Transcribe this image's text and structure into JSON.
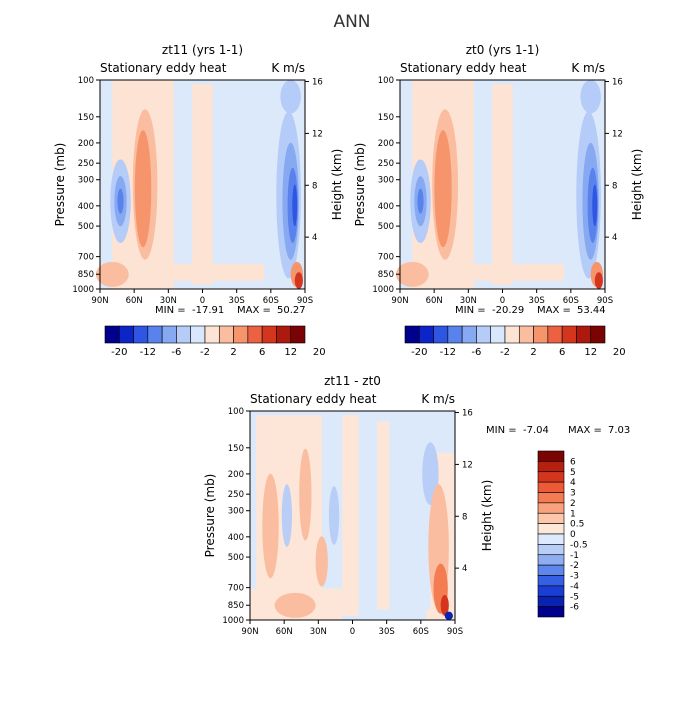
{
  "figure": {
    "title": "ANN"
  },
  "panels": {
    "p1": {
      "title": "zt11 (yrs 1-1)",
      "variable": "Stationary eddy heat",
      "units": "K m/s",
      "ylabel": "Pressure (mb)",
      "ylabel_right": "Height (km)",
      "min_label": "MIN =",
      "min_value": "-17.91",
      "max_label": "MAX =",
      "max_value": "50.27"
    },
    "p2": {
      "title": "zt0 (yrs 1-1)",
      "variable": "Stationary eddy heat",
      "units": "K m/s",
      "ylabel": "Pressure (mb)",
      "ylabel_right": "Height (km)",
      "min_label": "MIN =",
      "min_value": "-20.29",
      "max_label": "MAX =",
      "max_value": "53.44"
    },
    "p3": {
      "title": "zt11 - zt0",
      "variable": "Stationary eddy heat",
      "units": "K m/s",
      "ylabel": "Pressure (mb)",
      "ylabel_right": "Height (km)",
      "min_label": "MIN =",
      "min_value": "-7.04",
      "max_label": "MAX =",
      "max_value": "7.03"
    }
  },
  "chart_data": [
    {
      "type": "heatmap",
      "panel": "p1",
      "title": "zt11 (yrs 1-1)",
      "subtitle": "Stationary eddy heat",
      "units": "K m/s",
      "xlabel": "",
      "ylabel": "Pressure (mb)",
      "ylabel_right": "Height (km)",
      "x_ticks": [
        "90N",
        "60N",
        "30N",
        "0",
        "30S",
        "60S",
        "90S"
      ],
      "y_ticks": [
        "100",
        "150",
        "200",
        "250",
        "300",
        "400",
        "500",
        "700",
        "850",
        "1000"
      ],
      "y_right_ticks": [
        "4",
        "8",
        "12",
        "16"
      ],
      "y_scale": "log",
      "min": -17.91,
      "max": 50.27,
      "colorbar_labels": [
        "-20",
        "-12",
        "-6",
        "-2",
        "2",
        "6",
        "12",
        "20"
      ],
      "colorbar_colors": [
        "#00008c",
        "#0c24c8",
        "#2f55e3",
        "#5a82ec",
        "#87a9f1",
        "#b4ccf7",
        "#d8e7fd",
        "#fde3d3",
        "#fbbd9f",
        "#f6956c",
        "#ec6142",
        "#d3361d",
        "#ad1a0d",
        "#7a0403"
      ]
    },
    {
      "type": "heatmap",
      "panel": "p2",
      "title": "zt0 (yrs 1-1)",
      "subtitle": "Stationary eddy heat",
      "units": "K m/s",
      "xlabel": "",
      "ylabel": "Pressure (mb)",
      "ylabel_right": "Height (km)",
      "x_ticks": [
        "90N",
        "60N",
        "30N",
        "0",
        "30S",
        "60S",
        "90S"
      ],
      "y_ticks": [
        "100",
        "150",
        "200",
        "250",
        "300",
        "400",
        "500",
        "700",
        "850",
        "1000"
      ],
      "y_right_ticks": [
        "4",
        "8",
        "12",
        "16"
      ],
      "y_scale": "log",
      "min": -20.29,
      "max": 53.44,
      "colorbar_labels": [
        "-20",
        "-12",
        "-6",
        "-2",
        "2",
        "6",
        "12",
        "20"
      ],
      "colorbar_colors": [
        "#00008c",
        "#0c24c8",
        "#2f55e3",
        "#5a82ec",
        "#87a9f1",
        "#b4ccf7",
        "#d8e7fd",
        "#fde3d3",
        "#fbbd9f",
        "#f6956c",
        "#ec6142",
        "#d3361d",
        "#ad1a0d",
        "#7a0403"
      ]
    },
    {
      "type": "heatmap",
      "panel": "p3",
      "title": "zt11 - zt0",
      "subtitle": "Stationary eddy heat",
      "units": "K m/s",
      "xlabel": "",
      "ylabel": "Pressure (mb)",
      "ylabel_right": "Height (km)",
      "x_ticks": [
        "90N",
        "60N",
        "30N",
        "0",
        "30S",
        "60S",
        "90S"
      ],
      "y_ticks": [
        "100",
        "150",
        "200",
        "250",
        "300",
        "400",
        "500",
        "700",
        "850",
        "1000"
      ],
      "y_right_ticks": [
        "4",
        "8",
        "12",
        "16"
      ],
      "y_scale": "log",
      "min": -7.04,
      "max": 7.03,
      "colorbar_labels": [
        "6",
        "5",
        "4",
        "3",
        "2",
        "1",
        "0.5",
        "0",
        "-0.5",
        "-1",
        "-2",
        "-3",
        "-4",
        "-5",
        "-6"
      ],
      "colorbar_colors": [
        "#7a0403",
        "#b5200f",
        "#d3361d",
        "#ec5a37",
        "#f47c52",
        "#f9a27d",
        "#fcc7aa",
        "#fde7d9",
        "#dde9fc",
        "#b8cef7",
        "#8eaef1",
        "#5f86ec",
        "#3560e5",
        "#1a3ed3",
        "#0a22b0",
        "#00008c"
      ]
    }
  ]
}
